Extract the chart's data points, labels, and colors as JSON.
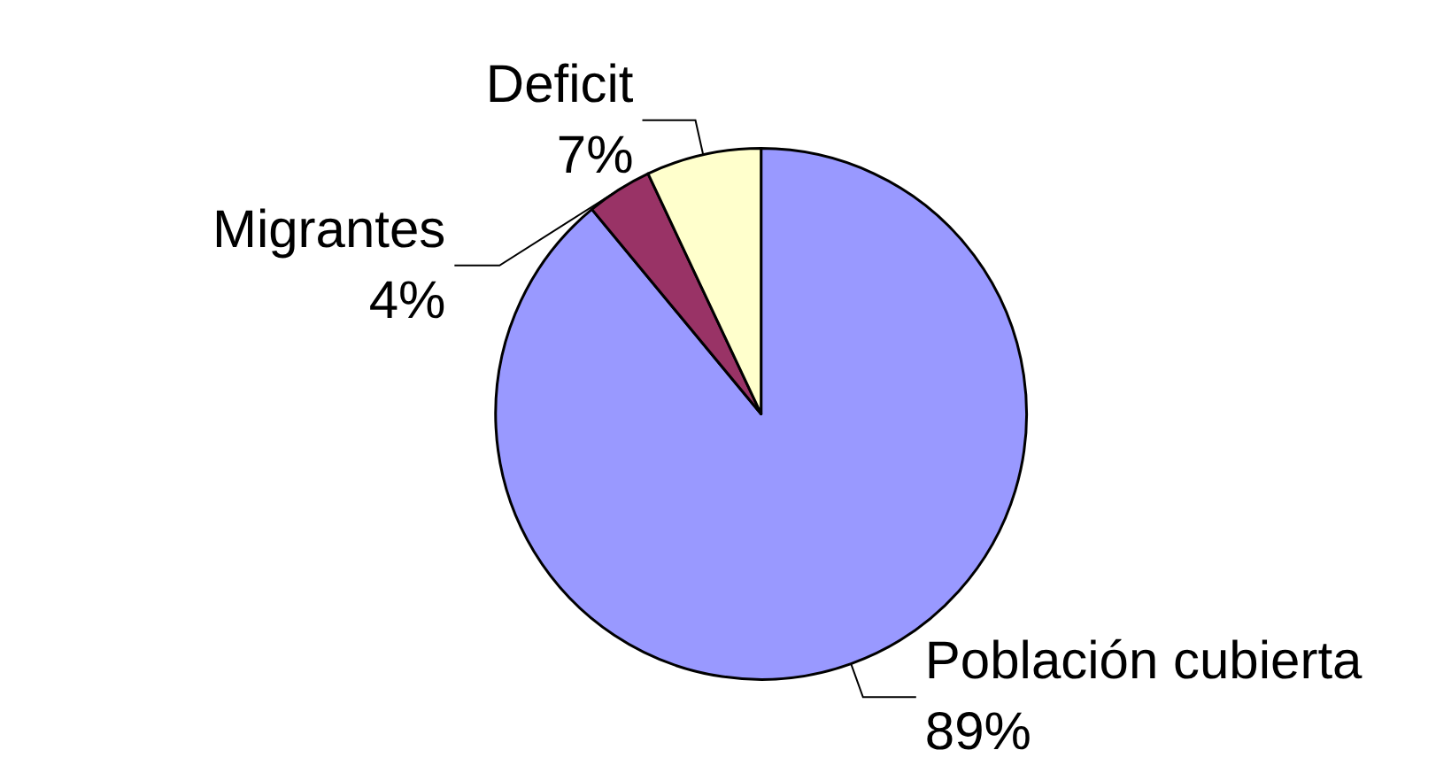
{
  "chart_data": {
    "type": "pie",
    "categories": [
      "Población cubierta",
      "Migrantes",
      "Deficit"
    ],
    "values": [
      89,
      4,
      7
    ],
    "value_labels": [
      "89%",
      "4%",
      "7%"
    ],
    "colors": [
      "#9999ff",
      "#993366",
      "#ffffcc"
    ],
    "legend": false
  }
}
